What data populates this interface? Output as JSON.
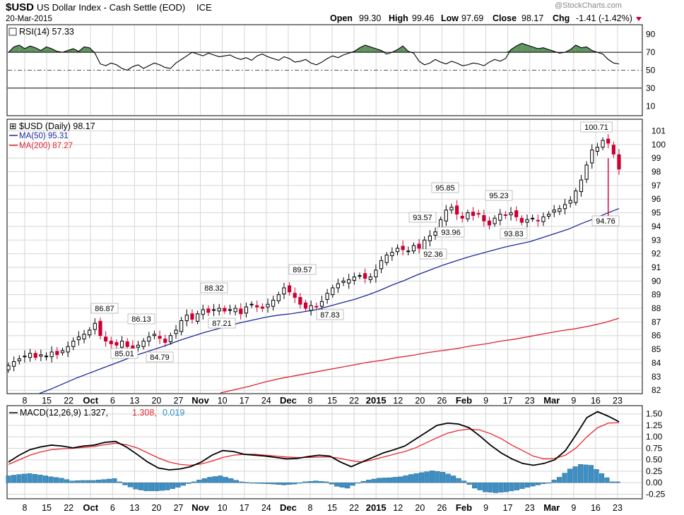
{
  "header": {
    "symbol": "$USD",
    "name": "US Dollar Index - Cash Settle (EOD)",
    "exchange": "ICE",
    "date": "20-Mar-2015",
    "open_label": "Open",
    "open": "99.30",
    "high_label": "High",
    "high": "99.46",
    "low_label": "Low",
    "low": "97.69",
    "close_label": "Close",
    "close": "98.17",
    "chg_label": "Chg",
    "chg": "-1.41 (-1.42%)",
    "watermark": "@StockCharts.com"
  },
  "colors": {
    "up": "#000000",
    "down": "#cc0033",
    "ma50": "#1a2a99",
    "ma200": "#dd2233",
    "rsi_fill": "#5f9460",
    "hist": "#3d8fc4",
    "grid": "#d6d6d6",
    "signal_text": "#e8262d",
    "hist_text": "#2a8fc9"
  },
  "chart_data": [
    {
      "type": "line",
      "panel": "RSI",
      "legend": "RSI(14) 57.33",
      "ylim": [
        0,
        100
      ],
      "yticks": [
        10,
        30,
        50,
        70,
        90
      ],
      "reference_lines": [
        70,
        50,
        30
      ],
      "series": [
        {
          "name": "RSI(14)",
          "values": [
            70,
            76,
            78,
            74,
            77,
            75,
            72,
            76,
            74,
            71,
            70,
            72,
            74,
            71,
            76,
            75,
            69,
            57,
            55,
            58,
            56,
            52,
            50,
            54,
            56,
            52,
            55,
            58,
            56,
            53,
            52,
            58,
            62,
            66,
            70,
            68,
            66,
            69,
            67,
            65,
            66,
            67,
            64,
            62,
            64,
            61,
            66,
            68,
            65,
            63,
            61,
            65,
            63,
            59,
            60,
            62,
            58,
            56,
            59,
            63,
            66,
            64,
            67,
            69,
            71,
            75,
            78,
            76,
            74,
            72,
            68,
            70,
            73,
            77,
            71,
            69,
            60,
            56,
            58,
            62,
            59,
            57,
            60,
            58,
            55,
            56,
            58,
            57,
            55,
            59,
            62,
            60,
            63,
            73,
            77,
            80,
            78,
            76,
            74,
            75,
            73,
            71,
            69,
            70,
            73,
            78,
            75,
            76,
            72,
            70,
            68,
            62,
            58,
            57
          ]
        }
      ]
    },
    {
      "type": "candlestick",
      "panel": "Price",
      "legend_price": "$USD (Daily) 98.17",
      "legend_ma50": "MA(50) 95.31",
      "legend_ma200": "MA(200) 87.27",
      "ylim": [
        81.8,
        101.8
      ],
      "yticks": [
        82,
        83,
        84,
        85,
        86,
        87,
        88,
        89,
        90,
        91,
        92,
        93,
        94,
        95,
        96,
        97,
        98,
        99,
        100,
        101
      ],
      "closes": [
        83.8,
        84.1,
        84.3,
        84.5,
        84.7,
        84.4,
        84.6,
        84.5,
        84.8,
        84.6,
        84.9,
        85.2,
        85.6,
        85.9,
        86.1,
        86.4,
        86.9,
        86.0,
        85.6,
        85.4,
        85.3,
        85.6,
        85.2,
        85.0,
        85.3,
        85.6,
        85.9,
        86.1,
        85.8,
        85.5,
        86.0,
        86.4,
        87.1,
        87.5,
        87.2,
        87.6,
        87.9,
        87.7,
        87.9,
        88.0,
        87.8,
        87.9,
        88.0,
        87.6,
        88.1,
        88.3,
        88.1,
        88.0,
        88.3,
        88.6,
        89.0,
        89.5,
        89.2,
        88.8,
        88.3,
        88.0,
        88.2,
        88.1,
        88.5,
        89.1,
        89.5,
        89.8,
        90.0,
        90.1,
        90.3,
        90.4,
        90.2,
        90.3,
        90.8,
        91.5,
        91.9,
        92.1,
        92.4,
        92.3,
        92.2,
        92.6,
        92.4,
        93.0,
        93.3,
        93.6,
        94.5,
        95.2,
        95.4,
        94.9,
        94.6,
        95.0,
        94.8,
        94.9,
        94.4,
        94.1,
        94.6,
        94.9,
        94.8,
        95.0,
        94.7,
        94.3,
        94.5,
        94.6,
        94.4,
        94.7,
        94.9,
        95.2,
        95.3,
        95.6,
        95.9,
        96.6,
        97.4,
        98.5,
        99.6,
        99.8,
        100.3,
        100.1,
        99.3,
        98.2
      ],
      "annotations": [
        "86.87",
        "85.01",
        "86.13",
        "84.79",
        "88.32",
        "87.21",
        "89.57",
        "87.83",
        "93.57",
        "95.85",
        "92.36",
        "93.96",
        "95.23",
        "93.83",
        "100.71",
        "94.76"
      ],
      "ma50": [
        81.75,
        82.1,
        82.5,
        82.9,
        83.25,
        83.6,
        83.95,
        84.3,
        84.65,
        84.95,
        85.25,
        85.6,
        85.9,
        86.2,
        86.45,
        86.7,
        86.95,
        87.15,
        87.35,
        87.5,
        87.6,
        87.75,
        87.9,
        88.15,
        88.4,
        88.65,
        88.95,
        89.3,
        89.7,
        90.05,
        90.45,
        90.8,
        91.15,
        91.45,
        91.75,
        92.0,
        92.25,
        92.5,
        92.7,
        92.9,
        93.2,
        93.5,
        93.8,
        94.2,
        94.55,
        94.95,
        95.31
      ],
      "ma200": [
        81.8,
        82.05,
        82.3,
        82.6,
        82.85,
        83.05,
        83.25,
        83.45,
        83.65,
        83.85,
        84.05,
        84.2,
        84.4,
        84.55,
        84.75,
        84.9,
        85.05,
        85.25,
        85.4,
        85.6,
        85.75,
        85.95,
        86.15,
        86.35,
        86.5,
        86.7,
        86.95,
        87.27
      ]
    },
    {
      "type": "line",
      "panel": "MACD",
      "legend_main": "MACD(12,26,9) 1.327,",
      "legend_signal": "1.308,",
      "legend_hist": "0.019",
      "ylim": [
        -0.32,
        1.65
      ],
      "yticks": [
        -0.25,
        0.0,
        0.25,
        0.5,
        0.75,
        1.0,
        1.25,
        1.5
      ],
      "ytick_labels": [
        "-0.25",
        "0.00",
        "0.25",
        "0.50",
        "0.75",
        "1.00",
        "1.25",
        "1.50"
      ],
      "series": [
        {
          "name": "MACD",
          "values": [
            0.45,
            0.6,
            0.72,
            0.78,
            0.82,
            0.8,
            0.76,
            0.8,
            0.82,
            0.88,
            0.9,
            0.78,
            0.62,
            0.45,
            0.32,
            0.28,
            0.3,
            0.35,
            0.45,
            0.6,
            0.7,
            0.68,
            0.62,
            0.6,
            0.58,
            0.55,
            0.52,
            0.53,
            0.57,
            0.6,
            0.58,
            0.45,
            0.35,
            0.45,
            0.55,
            0.65,
            0.72,
            0.8,
            0.95,
            1.1,
            1.25,
            1.3,
            1.28,
            1.2,
            1.02,
            0.82,
            0.65,
            0.52,
            0.42,
            0.38,
            0.42,
            0.5,
            0.7,
            1.05,
            1.42,
            1.55,
            1.45,
            1.33
          ]
        },
        {
          "name": "Signal",
          "values": [
            0.4,
            0.5,
            0.6,
            0.67,
            0.72,
            0.74,
            0.75,
            0.77,
            0.79,
            0.83,
            0.86,
            0.83,
            0.76,
            0.65,
            0.54,
            0.45,
            0.4,
            0.38,
            0.41,
            0.47,
            0.55,
            0.6,
            0.62,
            0.62,
            0.6,
            0.58,
            0.56,
            0.55,
            0.55,
            0.56,
            0.56,
            0.53,
            0.48,
            0.45,
            0.5,
            0.56,
            0.62,
            0.68,
            0.76,
            0.87,
            0.98,
            1.08,
            1.14,
            1.17,
            1.15,
            1.07,
            0.96,
            0.82,
            0.7,
            0.58,
            0.52,
            0.53,
            0.6,
            0.76,
            1.0,
            1.2,
            1.3,
            1.31
          ]
        },
        {
          "name": "Histogram",
          "values": [
            0.15,
            0.18,
            0.2,
            0.17,
            0.13,
            0.1,
            0.04,
            0.05,
            0.05,
            0.07,
            0.09,
            -0.05,
            -0.14,
            -0.18,
            -0.18,
            -0.16,
            -0.1,
            -0.02,
            0.06,
            0.12,
            0.15,
            0.09,
            0.02,
            -0.01,
            -0.02,
            -0.03,
            -0.05,
            -0.03,
            0.02,
            0.04,
            0.02,
            -0.08,
            -0.12,
            0.0,
            0.06,
            0.1,
            0.11,
            0.13,
            0.18,
            0.22,
            0.26,
            0.23,
            0.15,
            0.04,
            -0.12,
            -0.2,
            -0.22,
            -0.2,
            -0.16,
            -0.1,
            -0.05,
            0.0,
            0.12,
            0.3,
            0.4,
            0.38,
            0.2,
            0.02
          ]
        }
      ]
    }
  ],
  "x_axis": {
    "labels": [
      {
        "t": "8",
        "b": false
      },
      {
        "t": "15",
        "b": false
      },
      {
        "t": "22",
        "b": false
      },
      {
        "t": "Oct",
        "b": true
      },
      {
        "t": "6",
        "b": false
      },
      {
        "t": "13",
        "b": false
      },
      {
        "t": "20",
        "b": false
      },
      {
        "t": "27",
        "b": false
      },
      {
        "t": "Nov",
        "b": true
      },
      {
        "t": "10",
        "b": false
      },
      {
        "t": "17",
        "b": false
      },
      {
        "t": "24",
        "b": false
      },
      {
        "t": "Dec",
        "b": true
      },
      {
        "t": "8",
        "b": false
      },
      {
        "t": "15",
        "b": false
      },
      {
        "t": "22",
        "b": false
      },
      {
        "t": "2015",
        "b": true
      },
      {
        "t": "12",
        "b": false
      },
      {
        "t": "20",
        "b": false
      },
      {
        "t": "26",
        "b": false
      },
      {
        "t": "Feb",
        "b": true
      },
      {
        "t": "9",
        "b": false
      },
      {
        "t": "17",
        "b": false
      },
      {
        "t": "23",
        "b": false
      },
      {
        "t": "Mar",
        "b": true
      },
      {
        "t": "9",
        "b": false
      },
      {
        "t": "16",
        "b": false
      },
      {
        "t": "23",
        "b": false
      }
    ]
  }
}
